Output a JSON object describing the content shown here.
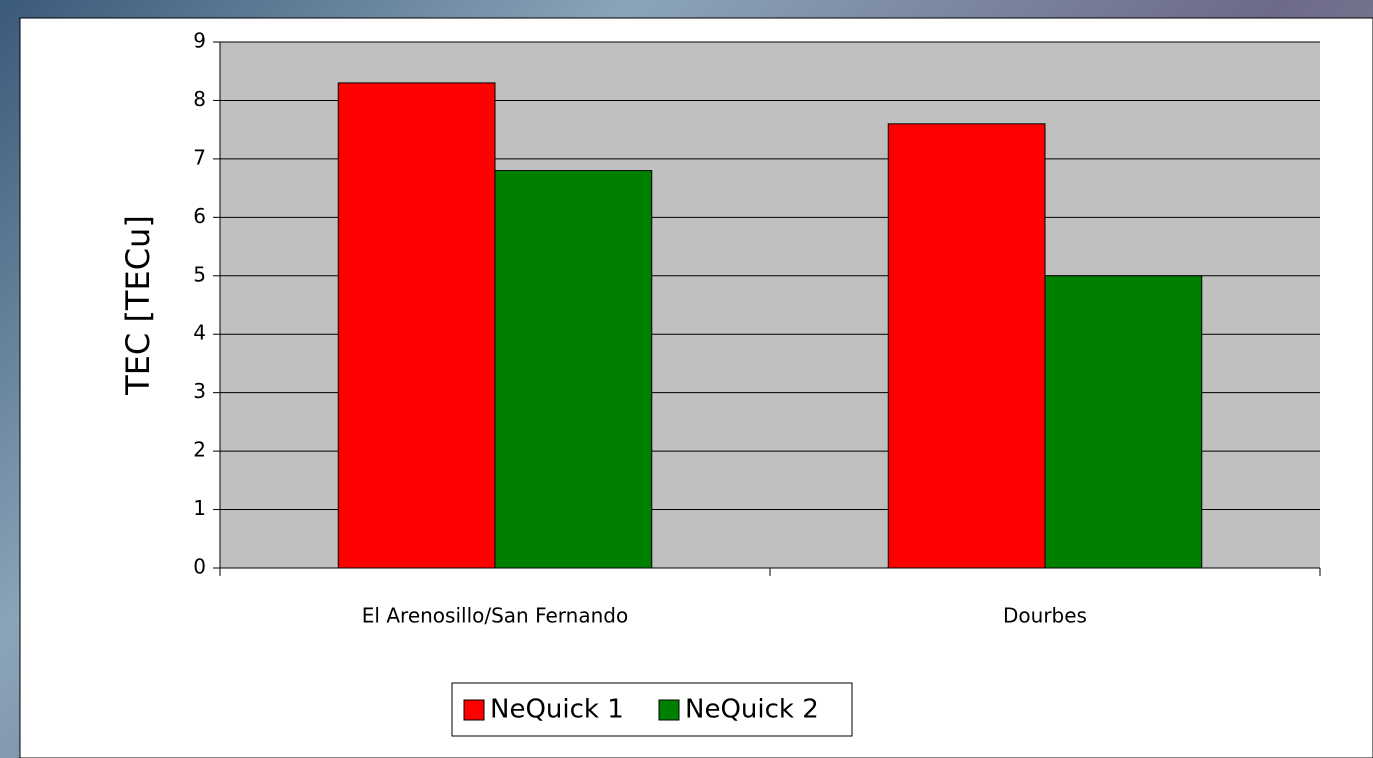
{
  "chart_data": {
    "type": "bar",
    "ylabel": "TEC [TECu]",
    "categories": [
      "El Arenosillo/San Fernando",
      "Dourbes"
    ],
    "series": [
      {
        "name": "NeQuick 1",
        "color": "#ff0000",
        "values": [
          8.3,
          7.6
        ]
      },
      {
        "name": "NeQuick 2",
        "color": "#008000",
        "values": [
          6.8,
          5.0
        ]
      }
    ],
    "ylim": [
      0,
      9
    ],
    "yticks": [
      0,
      1,
      2,
      3,
      4,
      5,
      6,
      7,
      8,
      9
    ],
    "grid": true,
    "legend": "bottom",
    "plot_background": "#c0c0c0"
  }
}
